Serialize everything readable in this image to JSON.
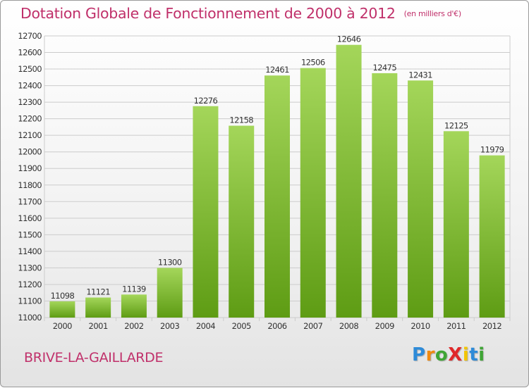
{
  "title": "Dotation Globale de Fonctionnement de 2000 à 2012",
  "unit_note": "(en milliers d'€)",
  "place": "BRIVE-LA-GAILLARDE",
  "logo": {
    "text": "ProXiti",
    "letters": [
      "P",
      "r",
      "o",
      "X",
      "i",
      "t",
      "i"
    ],
    "colors": [
      "#2e8bd8",
      "#f08a10",
      "#3fa535",
      "#e0282a",
      "#f2c500",
      "#2e8bd8",
      "#3fa535"
    ]
  },
  "colors": {
    "bar_light": "#a4d65a",
    "bar_dark": "#5e9c14",
    "title": "#c0306a",
    "grid": "#cccccc",
    "axis_text": "#333333"
  },
  "chart_data": {
    "type": "bar",
    "categories": [
      "2000",
      "2001",
      "2002",
      "2003",
      "2004",
      "2005",
      "2006",
      "2007",
      "2008",
      "2009",
      "2010",
      "2011",
      "2012"
    ],
    "values": [
      11098,
      11121,
      11139,
      11300,
      12276,
      12158,
      12461,
      12506,
      12646,
      12475,
      12431,
      12125,
      11979
    ],
    "title": "Dotation Globale de Fonctionnement de 2000 à 2012",
    "xlabel": "",
    "ylabel": "",
    "ylim": [
      11000,
      12700
    ],
    "yticks": [
      11000,
      11100,
      11200,
      11300,
      11400,
      11500,
      11600,
      11700,
      11800,
      11900,
      12000,
      12100,
      12200,
      12300,
      12400,
      12500,
      12600,
      12700
    ],
    "grid": true,
    "legend": "none"
  }
}
